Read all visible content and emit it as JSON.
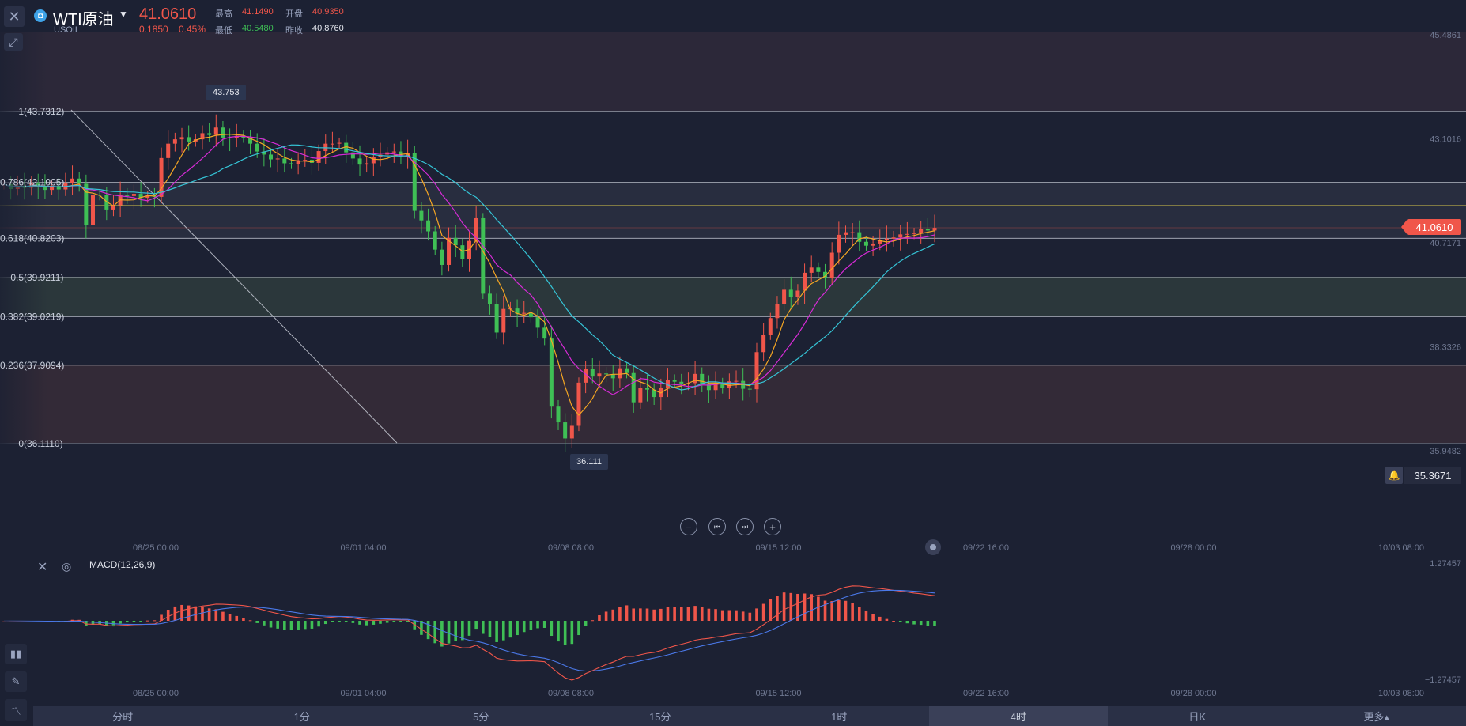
{
  "header": {
    "symbol_name": "WTI原油",
    "symbol_code": "USOIL",
    "price": "41.0610",
    "change": "0.1850",
    "change_pct": "0.45%",
    "high_label": "最高",
    "high": "41.1490",
    "open_label": "开盘",
    "open": "40.9350",
    "low_label": "最低",
    "low": "40.5480",
    "prev_label": "昨收",
    "prev_close": "40.8760"
  },
  "price_axis": [
    "45.4861",
    "43.1016",
    "40.7171",
    "38.3326",
    "35.9482"
  ],
  "current_price_tag": "41.0610",
  "alert_value": "35.3671",
  "fib_levels": [
    {
      "ratio": "1",
      "value": "(43.7312)"
    },
    {
      "ratio": "0.786",
      "value": "(42.1005)"
    },
    {
      "ratio": "0.618",
      "value": "(40.8203)"
    },
    {
      "ratio": "0.5",
      "value": "(39.9211)"
    },
    {
      "ratio": "0.382",
      "value": "(39.0219)"
    },
    {
      "ratio": "0.236",
      "value": "(37.9094)"
    },
    {
      "ratio": "0",
      "value": "(36.1110)"
    }
  ],
  "high_marker": "43.753",
  "low_marker": "36.111",
  "time_axis": [
    "08/25 00:00",
    "09/01 04:00",
    "09/08 08:00",
    "09/15 12:00",
    "09/22 16:00",
    "09/28 00:00",
    "10/03 08:00"
  ],
  "indicator": {
    "name": "MACD(12,26,9)",
    "top": "1.27457",
    "bottom": "−1.27457"
  },
  "periods": [
    "分时",
    "1分",
    "5分",
    "15分",
    "1时",
    "4时",
    "日K",
    "更多▴"
  ],
  "active_period": "4时",
  "colors": {
    "up": "#f0564a",
    "down": "#3fbf55",
    "ma1": "#f5a623",
    "ma2": "#d62bd6",
    "ma3": "#35c4d6"
  },
  "chart_data": {
    "type": "candlestick",
    "symbol": "USOIL",
    "ylim": [
      35.9482,
      45.4861
    ],
    "closes": [
      42.06,
      41.95,
      42.02,
      41.98,
      42.09,
      42.02,
      41.93,
      42.02,
      41.94,
      42.08,
      42.19,
      42.07,
      41.12,
      41.82,
      41.81,
      41.48,
      41.58,
      41.82,
      41.79,
      41.84,
      41.75,
      41.79,
      41.77,
      42.66,
      42.99,
      43.09,
      43.14,
      43.04,
      43.09,
      43.23,
      43.19,
      43.36,
      43.13,
      43.12,
      43.17,
      43.13,
      42.99,
      42.81,
      42.74,
      42.63,
      42.65,
      42.54,
      42.53,
      42.61,
      42.62,
      42.55,
      42.82,
      42.99,
      42.99,
      43.01,
      42.79,
      42.65,
      42.51,
      42.54,
      42.68,
      42.74,
      42.79,
      42.81,
      42.68,
      42.78,
      41.45,
      41.23,
      40.98,
      40.56,
      40.21,
      40.83,
      40.66,
      40.35,
      40.76,
      41.28,
      39.55,
      39.31,
      38.66,
      39.2,
      39.21,
      39.09,
      39.11,
      39.01,
      38.77,
      38.52,
      36.96,
      36.6,
      36.23,
      36.52,
      37.51,
      37.83,
      37.65,
      37.72,
      37.7,
      37.61,
      37.84,
      37.73,
      37.06,
      37.39,
      37.35,
      37.18,
      37.39,
      37.58,
      37.53,
      37.49,
      37.5,
      37.71,
      37.47,
      37.34,
      37.5,
      37.38,
      37.54,
      37.55,
      37.37,
      37.36,
      38.21,
      38.61,
      38.99,
      39.32,
      39.64,
      39.47,
      39.62,
      40.03,
      40.15,
      40.05,
      39.91,
      40.49,
      40.9,
      40.96,
      40.96,
      40.74,
      40.65,
      40.7,
      40.78,
      40.81,
      40.84,
      40.91,
      40.92,
      40.94,
      41.04,
      41.0,
      41.06
    ]
  }
}
